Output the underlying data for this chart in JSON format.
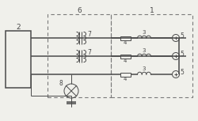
{
  "bg_color": "#f0f0eb",
  "line_color": "#4a4a4a",
  "dash_color": "#7a7a7a",
  "lw": 1.1,
  "tlw": 0.7,
  "label_2": "2",
  "label_6": "6",
  "label_1": "1",
  "label_7a": "7",
  "label_7b": "7",
  "label_8": "8",
  "label_3a": "3",
  "label_3b": "3",
  "label_3c": "3",
  "label_4a": "4",
  "label_4b": "4",
  "label_4c": "4",
  "label_5a": "5",
  "label_5b": "5",
  "label_5c": "5",
  "figw": 2.5,
  "figh": 1.53,
  "dpi": 100
}
